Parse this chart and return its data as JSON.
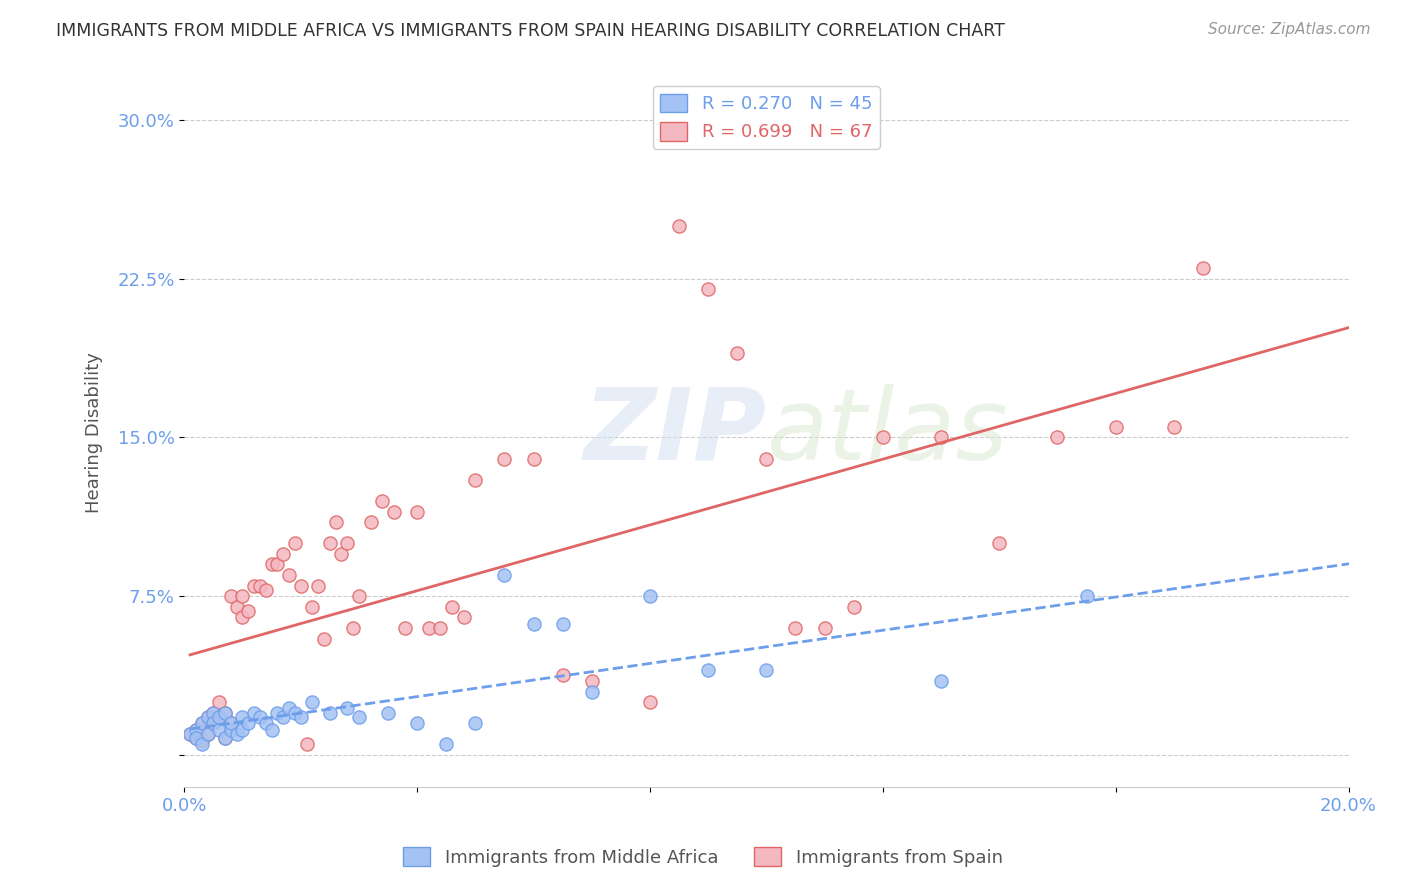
{
  "title": "IMMIGRANTS FROM MIDDLE AFRICA VS IMMIGRANTS FROM SPAIN HEARING DISABILITY CORRELATION CHART",
  "source": "Source: ZipAtlas.com",
  "ylabel": "Hearing Disability",
  "xlim": [
    0.0,
    0.2
  ],
  "ylim": [
    -0.015,
    0.32
  ],
  "yticks": [
    0.0,
    0.075,
    0.15,
    0.225,
    0.3
  ],
  "ytick_labels": [
    "",
    "7.5%",
    "15.0%",
    "22.5%",
    "30.0%"
  ],
  "xticks": [
    0.0,
    0.04,
    0.08,
    0.12,
    0.16,
    0.2
  ],
  "xtick_labels": [
    "0.0%",
    "",
    "",
    "",
    "",
    "20.0%"
  ],
  "blue_label": "Immigrants from Middle Africa",
  "pink_label": "Immigrants from Spain",
  "blue_R": 0.27,
  "blue_N": 45,
  "pink_R": 0.699,
  "pink_N": 67,
  "blue_color": "#a4c2f4",
  "pink_color": "#f4b8c1",
  "blue_edge_color": "#6d9eeb",
  "pink_edge_color": "#e06666",
  "blue_line_color": "#6d9eeb",
  "pink_line_color": "#e06666",
  "blue_scatter_x": [
    0.001,
    0.002,
    0.002,
    0.003,
    0.003,
    0.004,
    0.004,
    0.005,
    0.005,
    0.006,
    0.006,
    0.007,
    0.007,
    0.008,
    0.008,
    0.009,
    0.01,
    0.01,
    0.011,
    0.012,
    0.013,
    0.014,
    0.015,
    0.016,
    0.017,
    0.018,
    0.019,
    0.02,
    0.022,
    0.025,
    0.028,
    0.03,
    0.035,
    0.04,
    0.045,
    0.05,
    0.055,
    0.06,
    0.065,
    0.07,
    0.08,
    0.09,
    0.1,
    0.13,
    0.155
  ],
  "blue_scatter_y": [
    0.01,
    0.012,
    0.008,
    0.015,
    0.005,
    0.018,
    0.01,
    0.02,
    0.015,
    0.018,
    0.012,
    0.008,
    0.02,
    0.012,
    0.015,
    0.01,
    0.018,
    0.012,
    0.015,
    0.02,
    0.018,
    0.015,
    0.012,
    0.02,
    0.018,
    0.022,
    0.02,
    0.018,
    0.025,
    0.02,
    0.022,
    0.018,
    0.02,
    0.015,
    0.005,
    0.015,
    0.085,
    0.062,
    0.062,
    0.03,
    0.075,
    0.04,
    0.04,
    0.035,
    0.075
  ],
  "pink_scatter_x": [
    0.001,
    0.002,
    0.002,
    0.003,
    0.003,
    0.004,
    0.004,
    0.005,
    0.005,
    0.006,
    0.006,
    0.007,
    0.007,
    0.008,
    0.008,
    0.009,
    0.01,
    0.01,
    0.011,
    0.012,
    0.013,
    0.014,
    0.015,
    0.016,
    0.017,
    0.018,
    0.019,
    0.02,
    0.021,
    0.022,
    0.023,
    0.024,
    0.025,
    0.026,
    0.027,
    0.028,
    0.029,
    0.03,
    0.032,
    0.034,
    0.036,
    0.038,
    0.04,
    0.042,
    0.044,
    0.046,
    0.048,
    0.05,
    0.055,
    0.06,
    0.065,
    0.07,
    0.08,
    0.085,
    0.09,
    0.095,
    0.1,
    0.105,
    0.11,
    0.115,
    0.12,
    0.13,
    0.14,
    0.15,
    0.16,
    0.17,
    0.175
  ],
  "pink_scatter_y": [
    0.01,
    0.012,
    0.008,
    0.015,
    0.007,
    0.018,
    0.01,
    0.02,
    0.015,
    0.025,
    0.018,
    0.008,
    0.02,
    0.075,
    0.015,
    0.07,
    0.065,
    0.075,
    0.068,
    0.08,
    0.08,
    0.078,
    0.09,
    0.09,
    0.095,
    0.085,
    0.1,
    0.08,
    0.005,
    0.07,
    0.08,
    0.055,
    0.1,
    0.11,
    0.095,
    0.1,
    0.06,
    0.075,
    0.11,
    0.12,
    0.115,
    0.06,
    0.115,
    0.06,
    0.06,
    0.07,
    0.065,
    0.13,
    0.14,
    0.14,
    0.038,
    0.035,
    0.025,
    0.25,
    0.22,
    0.19,
    0.14,
    0.06,
    0.06,
    0.07,
    0.15,
    0.15,
    0.1,
    0.15,
    0.155,
    0.155,
    0.23
  ],
  "watermark_zip": "ZIP",
  "watermark_atlas": "atlas",
  "background_color": "#ffffff",
  "grid_color": "#cccccc"
}
